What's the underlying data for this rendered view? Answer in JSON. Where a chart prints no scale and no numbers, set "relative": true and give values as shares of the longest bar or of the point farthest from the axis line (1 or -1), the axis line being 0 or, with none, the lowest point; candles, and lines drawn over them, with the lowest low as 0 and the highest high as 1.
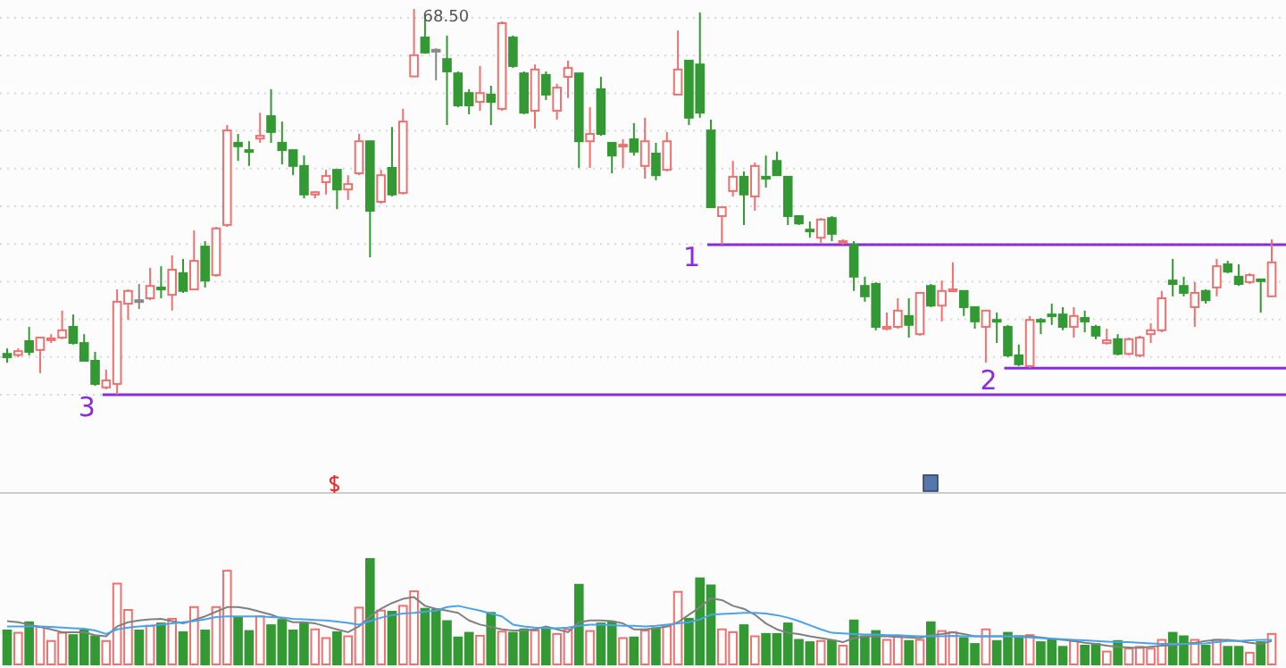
{
  "chart_data": [
    {
      "type": "candlestick",
      "relative": true,
      "grid": true,
      "categories": [
        null,
        null,
        null,
        null,
        null,
        null,
        null,
        null,
        null,
        null,
        null,
        null,
        null,
        null,
        null,
        null,
        null,
        null,
        null,
        null,
        null,
        null,
        null,
        null,
        null,
        null,
        null,
        null,
        null,
        null,
        null,
        null,
        null,
        null,
        null,
        null,
        null,
        null,
        null,
        null,
        null,
        null,
        null,
        null,
        null,
        null,
        null,
        null,
        null,
        null,
        null,
        null,
        null,
        null,
        null,
        null,
        null,
        null,
        null,
        null,
        null,
        null,
        null,
        null,
        null,
        null,
        null,
        null,
        null,
        null,
        null,
        null,
        null,
        null,
        null,
        null,
        null,
        null,
        null,
        null,
        null,
        null,
        null,
        null,
        null,
        null,
        null,
        null,
        null,
        null,
        null,
        null,
        null,
        null,
        null,
        null,
        null,
        null,
        null,
        null,
        null,
        null,
        null,
        null,
        null,
        null,
        null,
        null,
        null,
        null,
        null,
        null,
        null,
        null,
        null,
        null
      ],
      "ohlc": [
        [
          0.106,
          0.12,
          0.083,
          0.097
        ],
        [
          0.103,
          0.12,
          0.097,
          0.113
        ],
        [
          0.139,
          0.176,
          0.102,
          0.111
        ],
        [
          0.116,
          0.148,
          0.056,
          0.148
        ],
        [
          0.144,
          0.157,
          0.134,
          0.146
        ],
        [
          0.148,
          0.218,
          0.144,
          0.167
        ],
        [
          0.176,
          0.208,
          0.13,
          0.134
        ],
        [
          0.134,
          0.157,
          0.088,
          0.088
        ],
        [
          0.088,
          0.111,
          0.023,
          0.028
        ],
        [
          0.019,
          0.065,
          0.014,
          0.037
        ],
        [
          0.028,
          0.273,
          0,
          0.241
        ],
        [
          0.236,
          0.273,
          0.194,
          0.269
        ],
        [
          0.245,
          0.287,
          0.222,
          0.245
        ],
        [
          0.25,
          0.329,
          0.245,
          0.282
        ],
        [
          0.278,
          0.333,
          0.25,
          0.273
        ],
        [
          0.259,
          0.361,
          0.218,
          0.324
        ],
        [
          0.315,
          0.352,
          0.264,
          0.269
        ],
        [
          0.273,
          0.426,
          0.273,
          0.347
        ],
        [
          0.384,
          0.398,
          0.278,
          0.296
        ],
        [
          0.31,
          0.435,
          0.306,
          0.431
        ],
        [
          0.44,
          0.699,
          0.435,
          0.685
        ],
        [
          0.653,
          0.676,
          0.606,
          0.644
        ],
        [
          0.634,
          0.657,
          0.593,
          0.632
        ],
        [
          0.664,
          0.731,
          0.653,
          0.671
        ],
        [
          0.722,
          0.792,
          0.653,
          0.681
        ],
        [
          0.653,
          0.708,
          0.597,
          0.634
        ],
        [
          0.634,
          0.634,
          0.569,
          0.593
        ],
        [
          0.593,
          0.62,
          0.509,
          0.519
        ],
        [
          0.519,
          0.528,
          0.509,
          0.525
        ],
        [
          0.551,
          0.583,
          0.519,
          0.567
        ],
        [
          0.583,
          0.583,
          0.481,
          0.532
        ],
        [
          0.532,
          0.569,
          0.505,
          0.546
        ],
        [
          0.574,
          0.676,
          0.569,
          0.657
        ],
        [
          0.657,
          0.657,
          0.356,
          0.477
        ],
        [
          0.5,
          0.583,
          0.495,
          0.569
        ],
        [
          0.588,
          0.694,
          0.514,
          0.519
        ],
        [
          0.523,
          0.741,
          0.519,
          0.708
        ],
        [
          0.825,
          1,
          0.824,
          0.88
        ],
        [
          0.926,
          0.977,
          0.884,
          0.887
        ],
        [
          0.894,
          0.898,
          0.815,
          0.894
        ],
        [
          0.87,
          0.931,
          0.699,
          0.838
        ],
        [
          0.833,
          0.838,
          0.745,
          0.75
        ],
        [
          0.782,
          0.792,
          0.727,
          0.75
        ],
        [
          0.759,
          0.852,
          0.736,
          0.782
        ],
        [
          0.778,
          0.801,
          0.699,
          0.759
        ],
        [
          0.741,
          0.968,
          0.736,
          0.963
        ],
        [
          0.926,
          0.931,
          0.847,
          0.852
        ],
        [
          0.833,
          0.838,
          0.727,
          0.731
        ],
        [
          0.736,
          0.856,
          0.69,
          0.843
        ],
        [
          0.829,
          0.838,
          0.764,
          0.778
        ],
        [
          0.736,
          0.806,
          0.713,
          0.796
        ],
        [
          0.824,
          0.866,
          0.769,
          0.847
        ],
        [
          0.833,
          0.833,
          0.588,
          0.657
        ],
        [
          0.657,
          0.745,
          0.588,
          0.676
        ],
        [
          0.792,
          0.824,
          0.671,
          0.676
        ],
        [
          0.653,
          0.653,
          0.574,
          0.62
        ],
        [
          0.644,
          0.662,
          0.588,
          0.648
        ],
        [
          0.662,
          0.704,
          0.62,
          0.63
        ],
        [
          0.593,
          0.718,
          0.56,
          0.657
        ],
        [
          0.625,
          0.653,
          0.556,
          0.569
        ],
        [
          0.583,
          0.681,
          0.579,
          0.657
        ],
        [
          0.778,
          0.944,
          0.778,
          0.843
        ],
        [
          0.866,
          0.866,
          0.699,
          0.718
        ],
        [
          0.856,
          0.991,
          0.718,
          0.731
        ],
        [
          0.685,
          0.713,
          0.486,
          0.486
        ],
        [
          0.463,
          0.486,
          0.389,
          0.486
        ],
        [
          0.528,
          0.606,
          0.514,
          0.565
        ],
        [
          0.565,
          0.579,
          0.44,
          0.519
        ],
        [
          0.514,
          0.602,
          0.477,
          0.593
        ],
        [
          0.565,
          0.62,
          0.537,
          0.56
        ],
        [
          0.606,
          0.63,
          0.569,
          0.569
        ],
        [
          0.565,
          0.565,
          0.44,
          0.463
        ],
        [
          0.463,
          0.463,
          0.44,
          0.444
        ],
        [
          0.428,
          0.449,
          0.407,
          0.426
        ],
        [
          0.407,
          0.458,
          0.394,
          0.454
        ],
        [
          0.458,
          0.463,
          0.398,
          0.417
        ],
        [
          0.394,
          0.403,
          0.389,
          0.398
        ],
        [
          0.389,
          0.398,
          0.269,
          0.306
        ],
        [
          0.282,
          0.306,
          0.241,
          0.255
        ],
        [
          0.287,
          0.292,
          0.167,
          0.176
        ],
        [
          0.171,
          0.213,
          0.167,
          0.176
        ],
        [
          0.176,
          0.25,
          0.171,
          0.218
        ],
        [
          0.204,
          0.25,
          0.148,
          0.181
        ],
        [
          0.157,
          0.264,
          0.153,
          0.264
        ],
        [
          0.282,
          0.287,
          0.227,
          0.231
        ],
        [
          0.231,
          0.296,
          0.19,
          0.269
        ],
        [
          0.269,
          0.343,
          0.269,
          0.273
        ],
        [
          0.269,
          0.269,
          0.204,
          0.227
        ],
        [
          0.227,
          0.227,
          0.171,
          0.19
        ],
        [
          0.176,
          0.218,
          0.083,
          0.218
        ],
        [
          0.194,
          0.213,
          0.134,
          0.19
        ],
        [
          0.176,
          0.181,
          0.097,
          0.102
        ],
        [
          0.102,
          0.13,
          0.074,
          0.079
        ],
        [
          0.074,
          0.204,
          0.069,
          0.194
        ],
        [
          0.194,
          0.199,
          0.157,
          0.192
        ],
        [
          0.208,
          0.236,
          0.181,
          0.206
        ],
        [
          0.208,
          0.227,
          0.167,
          0.176
        ],
        [
          0.176,
          0.227,
          0.148,
          0.204
        ],
        [
          0.199,
          0.218,
          0.162,
          0.19
        ],
        [
          0.176,
          0.181,
          0.144,
          0.153
        ],
        [
          0.134,
          0.171,
          0.13,
          0.141
        ],
        [
          0.144,
          0.157,
          0.102,
          0.106
        ],
        [
          0.106,
          0.148,
          0.102,
          0.144
        ],
        [
          0.102,
          0.153,
          0.097,
          0.148
        ],
        [
          0.157,
          0.185,
          0.134,
          0.167
        ],
        [
          0.167,
          0.269,
          0.162,
          0.25
        ],
        [
          0.296,
          0.352,
          0.255,
          0.287
        ],
        [
          0.282,
          0.306,
          0.255,
          0.264
        ],
        [
          0.227,
          0.292,
          0.176,
          0.264
        ],
        [
          0.269,
          0.273,
          0.236,
          0.245
        ],
        [
          0.278,
          0.352,
          0.255,
          0.333
        ],
        [
          0.338,
          0.347,
          0.315,
          0.319
        ],
        [
          0.306,
          0.338,
          0.282,
          0.287
        ],
        [
          0.292,
          0.315,
          0.287,
          0.31
        ],
        [
          0.299,
          0.301,
          0.213,
          0.296
        ],
        [
          0.255,
          0.403,
          0.255,
          0.343
        ]
      ],
      "ref_lines": [
        {
          "axis": "y",
          "value": 0.389,
          "color": "#8a2be2"
        },
        {
          "axis": "y",
          "value": 0.069,
          "color": "#8a2be2"
        },
        {
          "axis": "y",
          "value": 0,
          "color": "#8a2be2"
        }
      ],
      "annotations": [
        "68.50",
        "1",
        "2",
        "3"
      ]
    },
    {
      "type": "bar",
      "relative": true,
      "categories": [
        null,
        null,
        null,
        null,
        null,
        null,
        null,
        null,
        null,
        null,
        null,
        null,
        null,
        null,
        null,
        null,
        null,
        null,
        null,
        null,
        null,
        null,
        null,
        null,
        null,
        null,
        null,
        null,
        null,
        null,
        null,
        null,
        null,
        null,
        null,
        null,
        null,
        null,
        null,
        null,
        null,
        null,
        null,
        null,
        null,
        null,
        null,
        null,
        null,
        null,
        null,
        null,
        null,
        null,
        null,
        null,
        null,
        null,
        null,
        null,
        null,
        null,
        null,
        null,
        null,
        null,
        null,
        null,
        null,
        null,
        null,
        null,
        null,
        null,
        null,
        null,
        null,
        null,
        null,
        null,
        null,
        null,
        null,
        null,
        null,
        null,
        null,
        null,
        null,
        null,
        null,
        null,
        null,
        null,
        null,
        null,
        null,
        null,
        null,
        null,
        null,
        null,
        null,
        null,
        null,
        null,
        null,
        null,
        null,
        null,
        null,
        null,
        null,
        null,
        null,
        null
      ],
      "series": [
        {
          "type": "bar",
          "values": [
            0.322,
            0.3,
            0.4,
            0.356,
            0.222,
            0.3,
            0.278,
            0.322,
            0.267,
            0.222,
            0.767,
            0.517,
            0.322,
            0.367,
            0.389,
            0.433,
            0.306,
            0.544,
            0.322,
            0.544,
            0.889,
            0.444,
            0.317,
            0.456,
            0.372,
            0.422,
            0.322,
            0.389,
            0.333,
            0.25,
            0.306,
            0.267,
            0.539,
            1,
            0.511,
            0.5,
            0.556,
            0.694,
            0.528,
            0.522,
            0.411,
            0.256,
            0.3,
            0.272,
            0.489,
            0.311,
            0.3,
            0.333,
            0.322,
            0.344,
            0.289,
            0.333,
            0.756,
            0.317,
            0.389,
            0.4,
            0.25,
            0.256,
            0.322,
            0.344,
            0.361,
            0.689,
            0.433,
            0.817,
            0.75,
            0.333,
            0.306,
            0.372,
            0.267,
            0.289,
            0.289,
            0.389,
            0.233,
            0.211,
            0.222,
            0.222,
            0.178,
            0.417,
            0.267,
            0.317,
            0.233,
            0.267,
            0.222,
            0.233,
            0.4,
            0.317,
            0.306,
            0.25,
            0.194,
            0.333,
            0.222,
            0.3,
            0.267,
            0.278,
            0.211,
            0.233,
            0.167,
            0.222,
            0.178,
            0.194,
            0.122,
            0.222,
            0.15,
            0.167,
            0.15,
            0.233,
            0.3,
            0.267,
            0.233,
            0.178,
            0.233,
            0.167,
            0.167,
            0.111,
            0.211,
            0.289
          ],
          "colors": [
            "#339933",
            "#f07070",
            "#339933",
            "#f07070",
            "#f07070",
            "#f07070",
            "#339933",
            "#339933",
            "#339933",
            "#f07070",
            "#f07070",
            "#f07070",
            "#339933",
            "#f07070",
            "#339933",
            "#f07070",
            "#339933",
            "#f07070",
            "#339933",
            "#f07070",
            "#f07070",
            "#339933",
            "#339933",
            "#f07070",
            "#339933",
            "#339933",
            "#339933",
            "#339933",
            "#f07070",
            "#f07070",
            "#339933",
            "#f07070",
            "#f07070",
            "#339933",
            "#f07070",
            "#339933",
            "#f07070",
            "#f07070",
            "#339933",
            "#339933",
            "#339933",
            "#339933",
            "#339933",
            "#f07070",
            "#339933",
            "#f07070",
            "#339933",
            "#339933",
            "#f07070",
            "#339933",
            "#f07070",
            "#f07070",
            "#339933",
            "#f07070",
            "#339933",
            "#339933",
            "#f07070",
            "#339933",
            "#f07070",
            "#339933",
            "#f07070",
            "#f07070",
            "#339933",
            "#339933",
            "#339933",
            "#f07070",
            "#f07070",
            "#339933",
            "#f07070",
            "#339933",
            "#339933",
            "#339933",
            "#339933",
            "#339933",
            "#f07070",
            "#339933",
            "#f07070",
            "#339933",
            "#339933",
            "#339933",
            "#f07070",
            "#f07070",
            "#339933",
            "#f07070",
            "#339933",
            "#f07070",
            "#f07070",
            "#339933",
            "#339933",
            "#f07070",
            "#339933",
            "#339933",
            "#339933",
            "#f07070",
            "#339933",
            "#339933",
            "#339933",
            "#f07070",
            "#339933",
            "#339933",
            "#f07070",
            "#339933",
            "#f07070",
            "#f07070",
            "#f07070",
            "#f07070",
            "#339933",
            "#339933",
            "#f07070",
            "#339933",
            "#f07070",
            "#339933",
            "#339933",
            "#f07070",
            "#339933",
            "#f07070"
          ]
        },
        {
          "type": "line",
          "color": "#808080",
          "values": [
            0.411,
            0.4,
            0.378,
            0.356,
            0.333,
            0.306,
            0.306,
            0.306,
            0.278,
            0.267,
            0.361,
            0.4,
            0.417,
            0.428,
            0.433,
            0.411,
            0.389,
            0.422,
            0.456,
            0.5,
            0.544,
            0.544,
            0.528,
            0.5,
            0.472,
            0.433,
            0.4,
            0.4,
            0.389,
            0.361,
            0.333,
            0.306,
            0.361,
            0.456,
            0.528,
            0.583,
            0.622,
            0.639,
            0.556,
            0.528,
            0.511,
            0.489,
            0.417,
            0.378,
            0.356,
            0.333,
            0.322,
            0.322,
            0.333,
            0.361,
            0.333,
            0.306,
            0.4,
            0.417,
            0.417,
            0.411,
            0.389,
            0.333,
            0.333,
            0.344,
            0.361,
            0.4,
            0.472,
            0.544,
            0.628,
            0.611,
            0.556,
            0.528,
            0.472,
            0.389,
            0.333,
            0.3,
            0.289,
            0.267,
            0.25,
            0.233,
            0.211,
            0.25,
            0.267,
            0.267,
            0.267,
            0.261,
            0.256,
            0.25,
            0.278,
            0.289,
            0.306,
            0.289,
            0.267,
            0.267,
            0.267,
            0.267,
            0.267,
            0.267,
            0.256,
            0.244,
            0.233,
            0.222,
            0.206,
            0.194,
            0.178,
            0.167,
            0.161,
            0.156,
            0.167,
            0.178,
            0.183,
            0.194,
            0.206,
            0.222,
            0.233,
            0.233,
            0.222,
            0.206,
            0.194,
            0.222
          ]
        },
        {
          "type": "line",
          "color": "#4aa3e8",
          "values": [
            0.361,
            0.361,
            0.361,
            0.361,
            0.356,
            0.35,
            0.344,
            0.339,
            0.322,
            0.289,
            0.333,
            0.35,
            0.361,
            0.367,
            0.378,
            0.389,
            0.4,
            0.411,
            0.428,
            0.45,
            0.456,
            0.456,
            0.456,
            0.456,
            0.45,
            0.444,
            0.433,
            0.428,
            0.422,
            0.417,
            0.406,
            0.394,
            0.378,
            0.411,
            0.444,
            0.467,
            0.483,
            0.489,
            0.5,
            0.511,
            0.544,
            0.556,
            0.533,
            0.511,
            0.483,
            0.456,
            0.378,
            0.361,
            0.35,
            0.344,
            0.344,
            0.35,
            0.367,
            0.378,
            0.378,
            0.372,
            0.367,
            0.367,
            0.361,
            0.367,
            0.378,
            0.389,
            0.4,
            0.428,
            0.472,
            0.478,
            0.483,
            0.489,
            0.489,
            0.483,
            0.467,
            0.444,
            0.411,
            0.372,
            0.333,
            0.3,
            0.294,
            0.289,
            0.283,
            0.283,
            0.278,
            0.278,
            0.272,
            0.267,
            0.267,
            0.267,
            0.272,
            0.267,
            0.267,
            0.267,
            0.267,
            0.267,
            0.261,
            0.256,
            0.25,
            0.244,
            0.239,
            0.233,
            0.228,
            0.222,
            0.217,
            0.211,
            0.211,
            0.206,
            0.2,
            0.194,
            0.194,
            0.194,
            0.194,
            0.2,
            0.211,
            0.222,
            0.222,
            0.228,
            0.233,
            0.233
          ]
        }
      ]
    }
  ]
}
